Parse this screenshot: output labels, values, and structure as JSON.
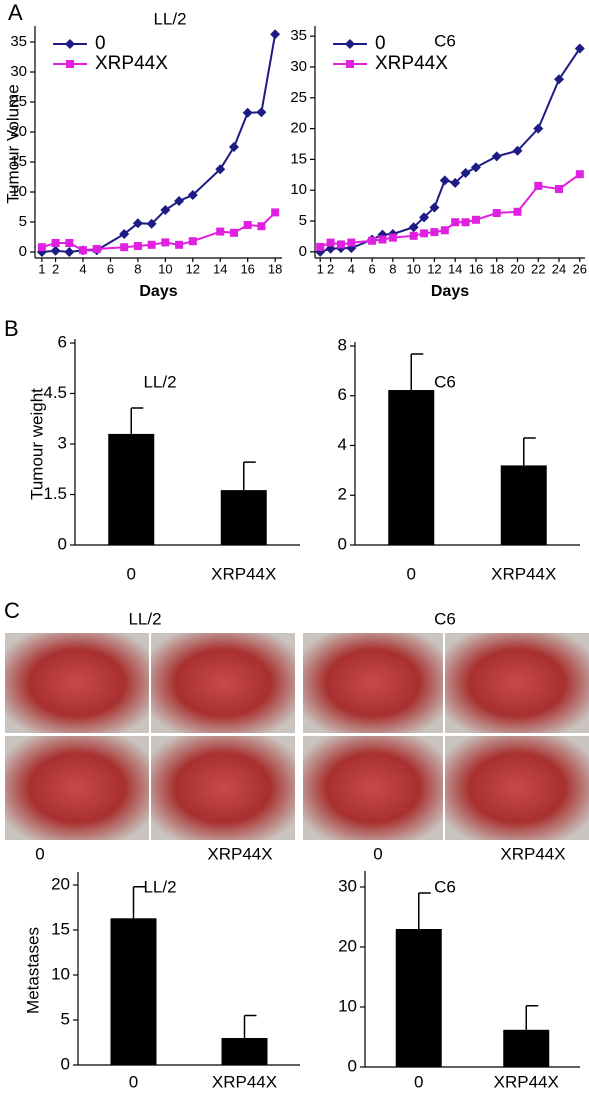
{
  "panel_labels": [
    "A",
    "B",
    "C"
  ],
  "photos": {
    "titles": [
      "LL/2",
      "C6"
    ],
    "captions": [
      "0",
      "XRP44X",
      "0",
      "XRP44X"
    ]
  },
  "chart_data": [
    {
      "type": "line",
      "title": "LL/2",
      "y_label": "Tumour Volume",
      "x_label": "Days",
      "x": [
        1,
        2,
        3,
        4,
        5,
        7,
        8,
        9,
        10,
        11,
        12,
        14,
        15,
        16,
        17,
        18
      ],
      "series": [
        {
          "name": "0",
          "color": "#1c1c84",
          "marker": "diamond",
          "values": [
            0,
            0.2,
            0,
            0.3,
            0.3,
            3,
            4.8,
            4.7,
            7,
            8.5,
            9.5,
            13.8,
            17.5,
            23.2,
            23.3,
            36.3
          ]
        },
        {
          "name": "XRP44X",
          "color": "#e020e0",
          "marker": "square",
          "values": [
            0.8,
            1.5,
            1.5,
            0.3,
            0.5,
            0.8,
            1,
            1.2,
            1.6,
            1.2,
            1.8,
            3.4,
            3.2,
            4.5,
            4.3,
            6.6
          ]
        }
      ],
      "xlim": [
        0.5,
        18.5
      ],
      "xticks": [
        1,
        2,
        4,
        6,
        8,
        10,
        12,
        14,
        16,
        18
      ],
      "ylim": [
        -1,
        37
      ],
      "yticks": [
        0,
        5,
        10,
        15,
        20,
        25,
        30,
        35
      ],
      "legend": "upper-left"
    },
    {
      "type": "line",
      "title": "C6",
      "x_label": "Days",
      "x": [
        1,
        2,
        3,
        4,
        6,
        7,
        8,
        10,
        11,
        12,
        13,
        14,
        15,
        16,
        18,
        20,
        22,
        24,
        26
      ],
      "series": [
        {
          "name": "0",
          "color": "#1c1c84",
          "marker": "diamond",
          "values": [
            0,
            0.5,
            0.6,
            0.6,
            2,
            2.8,
            2.9,
            4,
            5.6,
            7.2,
            11.6,
            11.2,
            12.8,
            13.7,
            15.5,
            16.4,
            20,
            28,
            33
          ]
        },
        {
          "name": "XRP44X",
          "color": "#e020e0",
          "marker": "square",
          "values": [
            0.8,
            1.5,
            1.2,
            1.5,
            1.8,
            2,
            2.3,
            2.6,
            3,
            3.2,
            3.5,
            4.8,
            4.8,
            5.2,
            6.3,
            6.5,
            10.7,
            10.2,
            12.6
          ]
        }
      ],
      "xlim": [
        0.5,
        26.5
      ],
      "xticks": [
        1,
        2,
        4,
        6,
        8,
        10,
        12,
        14,
        16,
        18,
        20,
        22,
        24,
        26
      ],
      "ylim": [
        -1,
        36
      ],
      "yticks": [
        0,
        5,
        10,
        15,
        20,
        25,
        30,
        35
      ],
      "legend": "upper-left"
    },
    {
      "type": "bar",
      "title": "LL/2",
      "y_label": "Tumour weight",
      "categories": [
        "0",
        "XRP44X"
      ],
      "values": [
        3.3,
        1.63
      ],
      "errors": [
        0.77,
        0.83
      ],
      "color": "#000000",
      "ylim": [
        0,
        6
      ],
      "yticks": [
        0,
        1.5,
        3,
        4.5,
        6
      ]
    },
    {
      "type": "bar",
      "title": "C6",
      "categories": [
        "0",
        "XRP44X"
      ],
      "values": [
        6.23,
        3.2
      ],
      "errors": [
        1.45,
        1.1
      ],
      "color": "#000000",
      "ylim": [
        0,
        8
      ],
      "yticks": [
        0,
        2,
        4,
        6,
        8
      ]
    },
    {
      "type": "bar",
      "title": "LL/2",
      "y_label": "Metastases",
      "categories": [
        "0",
        "XRP44X"
      ],
      "values": [
        16.3,
        3
      ],
      "errors": [
        3.5,
        2.5
      ],
      "color": "#000000",
      "ylim": [
        0,
        21
      ],
      "yticks": [
        0,
        5,
        10,
        15,
        20
      ]
    },
    {
      "type": "bar",
      "title": "C6",
      "categories": [
        "0",
        "XRP44X"
      ],
      "values": [
        23,
        6.2
      ],
      "errors": [
        6,
        4
      ],
      "color": "#000000",
      "ylim": [
        0,
        32
      ],
      "yticks": [
        0,
        10,
        20,
        30
      ]
    }
  ]
}
